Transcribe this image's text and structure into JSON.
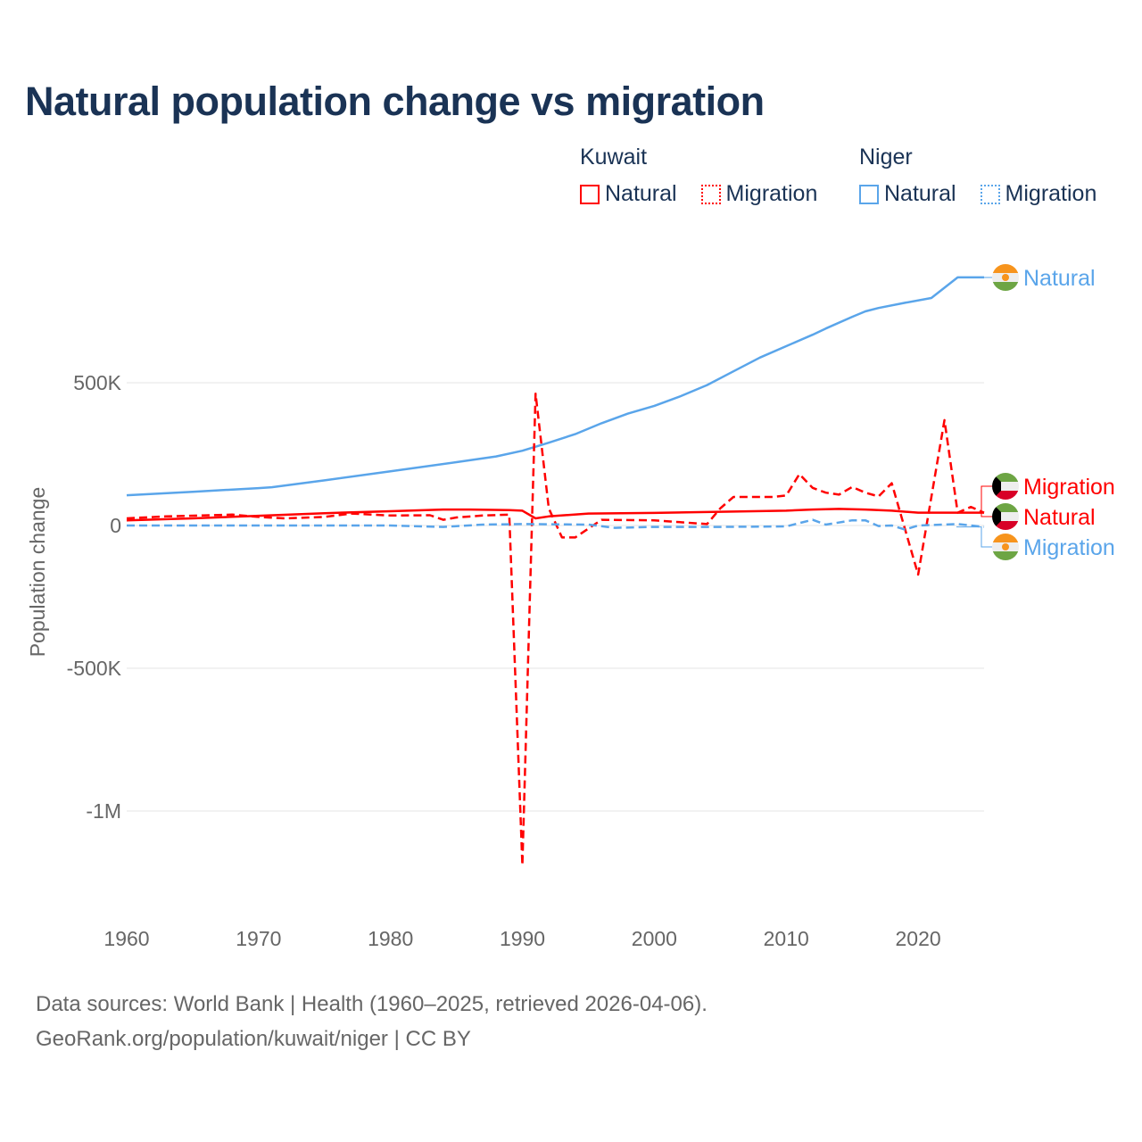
{
  "title": "Natural population change vs migration",
  "legend": {
    "groups": [
      {
        "name": "Kuwait",
        "items": [
          {
            "label": "Natural",
            "style": "solid"
          },
          {
            "label": "Migration",
            "style": "dotted"
          }
        ],
        "color": "#ff0000"
      },
      {
        "name": "Niger",
        "items": [
          {
            "label": "Natural",
            "style": "solid"
          },
          {
            "label": "Migration",
            "style": "dotted"
          }
        ],
        "color": "#5aa5ea"
      }
    ]
  },
  "footer": {
    "line1": "Data sources: World Bank | Health (1960–2025, retrieved 2026-04-06).",
    "line2": "GeoRank.org/population/kuwait/niger | CC BY"
  },
  "chart_data": {
    "type": "line",
    "title": "Natural population change vs migration",
    "xlabel": "",
    "ylabel": "Population change",
    "xlim": [
      1960,
      2025
    ],
    "ylim": [
      -1300000,
      1000000
    ],
    "xticks": [
      1960,
      1970,
      1980,
      1990,
      2000,
      2010,
      2020
    ],
    "xtick_labels": [
      "1960",
      "1970",
      "1980",
      "1990",
      "2000",
      "2010",
      "2020"
    ],
    "yticks": [
      500000,
      0,
      -500000,
      -1000000
    ],
    "ytick_labels": [
      "500K",
      "0",
      "-500K",
      "-1M"
    ],
    "grid": true,
    "series": [
      {
        "name": "Niger Natural",
        "country": "Niger",
        "label": "Natural",
        "color": "#5aa5ea",
        "dash": "solid",
        "x": [
          1960,
          1965,
          1970,
          1971,
          1975,
          1980,
          1985,
          1988,
          1990,
          1992,
          1994,
          1996,
          1998,
          2000,
          2002,
          2004,
          2006,
          2008,
          2010,
          2012,
          2013,
          2015,
          2016,
          2017,
          2019,
          2021,
          2023,
          2025
        ],
        "y": [
          106000,
          118000,
          131000,
          134000,
          158000,
          190000,
          222000,
          242000,
          262000,
          290000,
          320000,
          358000,
          392000,
          419000,
          453000,
          492000,
          540000,
          588000,
          628000,
          668000,
          690000,
          731000,
          750000,
          762000,
          780000,
          797000,
          869000,
          869000
        ]
      },
      {
        "name": "Kuwait Natural",
        "country": "Kuwait",
        "label": "Natural",
        "color": "#ff0000",
        "dash": "solid",
        "x": [
          1960,
          1965,
          1970,
          1975,
          1980,
          1984,
          1986,
          1989,
          1990,
          1991,
          1992,
          1995,
          2000,
          2005,
          2010,
          2012,
          2014,
          2016,
          2018,
          2020,
          2023,
          2025
        ],
        "y": [
          18000,
          25000,
          34000,
          43000,
          50000,
          56000,
          56000,
          54000,
          52000,
          25000,
          32000,
          42000,
          44000,
          48000,
          52000,
          56000,
          58000,
          56000,
          52000,
          45000,
          45000,
          45000
        ]
      },
      {
        "name": "Kuwait Migration",
        "country": "Kuwait",
        "label": "Migration",
        "color": "#ff0000",
        "dash": "dashed",
        "x": [
          1960,
          1963,
          1968,
          1970,
          1972,
          1975,
          1977,
          1980,
          1983,
          1984,
          1985,
          1987,
          1989,
          1990,
          1991,
          1992,
          1993,
          1994,
          1996,
          2000,
          2004,
          2005,
          2006,
          2009,
          2010,
          2011,
          2012,
          2013,
          2014,
          2015,
          2016,
          2017,
          2018,
          2020,
          2022,
          2023,
          2024,
          2025
        ],
        "y": [
          25000,
          32000,
          38000,
          30000,
          25000,
          30000,
          42000,
          35000,
          36000,
          20000,
          28000,
          35000,
          38000,
          -1190000,
          462000,
          60000,
          -42000,
          -42000,
          20000,
          18000,
          5000,
          60000,
          100000,
          100000,
          105000,
          180000,
          132000,
          115000,
          108000,
          135000,
          115000,
          102000,
          148000,
          -172000,
          369000,
          45000,
          65000,
          45000
        ]
      },
      {
        "name": "Niger Migration",
        "country": "Niger",
        "label": "Migration",
        "color": "#5aa5ea",
        "dash": "dashed",
        "x": [
          1960,
          1970,
          1980,
          1984,
          1987,
          1990,
          1995,
          1997,
          2000,
          2005,
          2010,
          2012,
          2013,
          2015,
          2016,
          2017,
          2018,
          2019,
          2020,
          2023,
          2025
        ],
        "y": [
          0,
          0,
          0,
          -5000,
          3000,
          5000,
          3000,
          -8000,
          -5000,
          -5000,
          -3000,
          20000,
          3000,
          18000,
          18000,
          -2000,
          0,
          -14000,
          0,
          5000,
          -5000
        ]
      }
    ],
    "end_labels": [
      {
        "text": "Natural",
        "country": "Niger",
        "color": "#5aa5ea"
      },
      {
        "text": "Migration",
        "country": "Kuwait",
        "color": "#ff0000"
      },
      {
        "text": "Natural",
        "country": "Kuwait",
        "color": "#ff0000"
      },
      {
        "text": "Migration",
        "country": "Niger",
        "color": "#5aa5ea"
      }
    ]
  }
}
